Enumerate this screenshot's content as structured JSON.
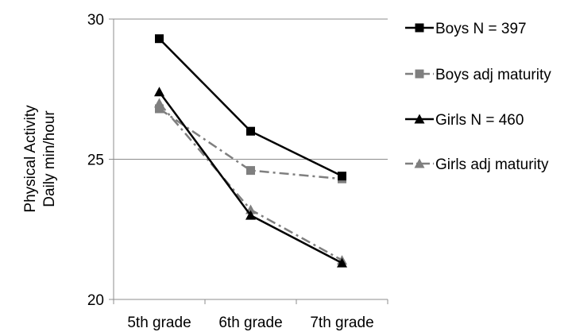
{
  "chart_data": {
    "type": "line",
    "categories": [
      "5th grade",
      "6th grade",
      "7th grade"
    ],
    "ylabel_lines": [
      "Physical Activity",
      "Daily min/hour"
    ],
    "ylim": [
      20,
      30
    ],
    "yticks": [
      20,
      25,
      30
    ],
    "grid": "horizontal",
    "legend_placement": "right",
    "series": [
      {
        "name": "Boys N = 397",
        "values": [
          29.3,
          26.0,
          24.4
        ],
        "color": "#000000",
        "marker": "square",
        "dash": "solid"
      },
      {
        "name": "Boys adj maturity",
        "values": [
          26.8,
          24.6,
          24.3
        ],
        "color": "#7f7f7f",
        "marker": "square",
        "dash": "dashdot"
      },
      {
        "name": "Girls N = 460",
        "values": [
          27.4,
          23.0,
          21.3
        ],
        "color": "#000000",
        "marker": "triangle",
        "dash": "solid"
      },
      {
        "name": "Girls adj maturity",
        "values": [
          27.0,
          23.2,
          21.4
        ],
        "color": "#7f7f7f",
        "marker": "triangle",
        "dash": "dashdot"
      }
    ]
  }
}
